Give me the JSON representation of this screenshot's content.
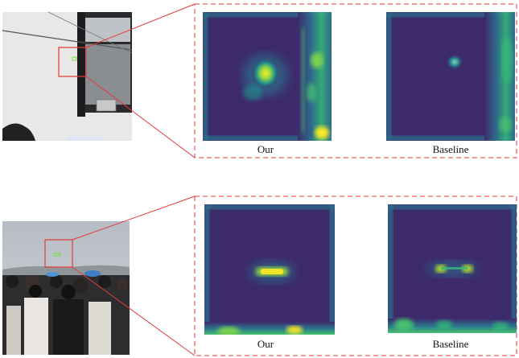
{
  "rows": [
    {
      "our_label": "Our",
      "baseline_label": "Baseline"
    },
    {
      "our_label": "Our",
      "baseline_label": "Baseline"
    }
  ],
  "colors": {
    "highlight": "#e23a3a",
    "detection_box": "#6fe33b",
    "heat_low": "#3d2a6b",
    "heat_mid": "#21918c",
    "heat_high": "#fde725"
  }
}
